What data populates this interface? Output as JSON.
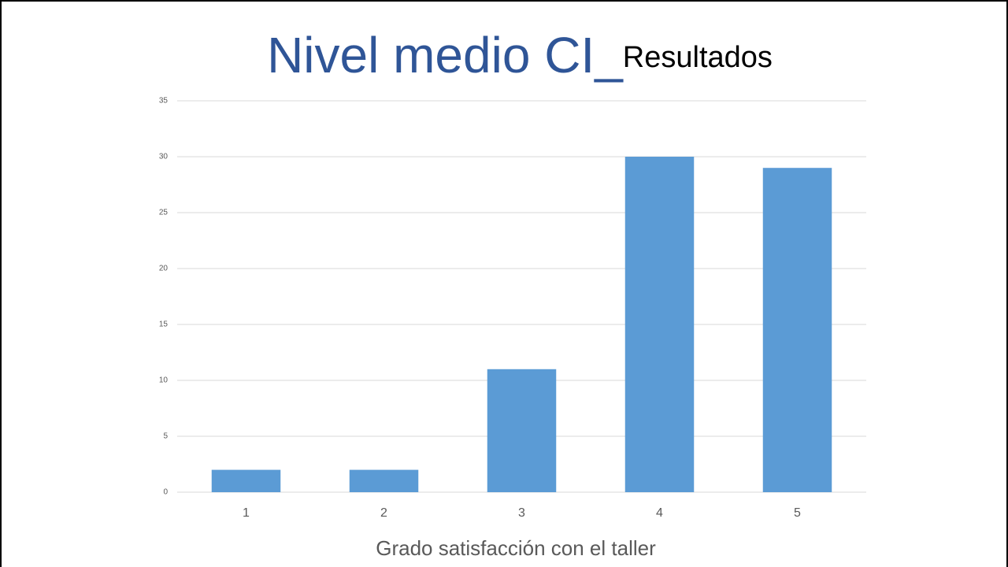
{
  "chart_data": {
    "type": "bar",
    "title": "Nivel medio CI_",
    "title_suffix": "Resultados",
    "x_label": "Grado satisfacción con el taller",
    "categories": [
      "1",
      "2",
      "3",
      "4",
      "5"
    ],
    "values": [
      2,
      2,
      11,
      30,
      29
    ],
    "color": "#5b9bd5",
    "title_color": "#2f5597",
    "ylim": [
      0,
      35
    ],
    "yticks": [
      0,
      5,
      10,
      15,
      20,
      25,
      30,
      35
    ],
    "grid": true
  }
}
